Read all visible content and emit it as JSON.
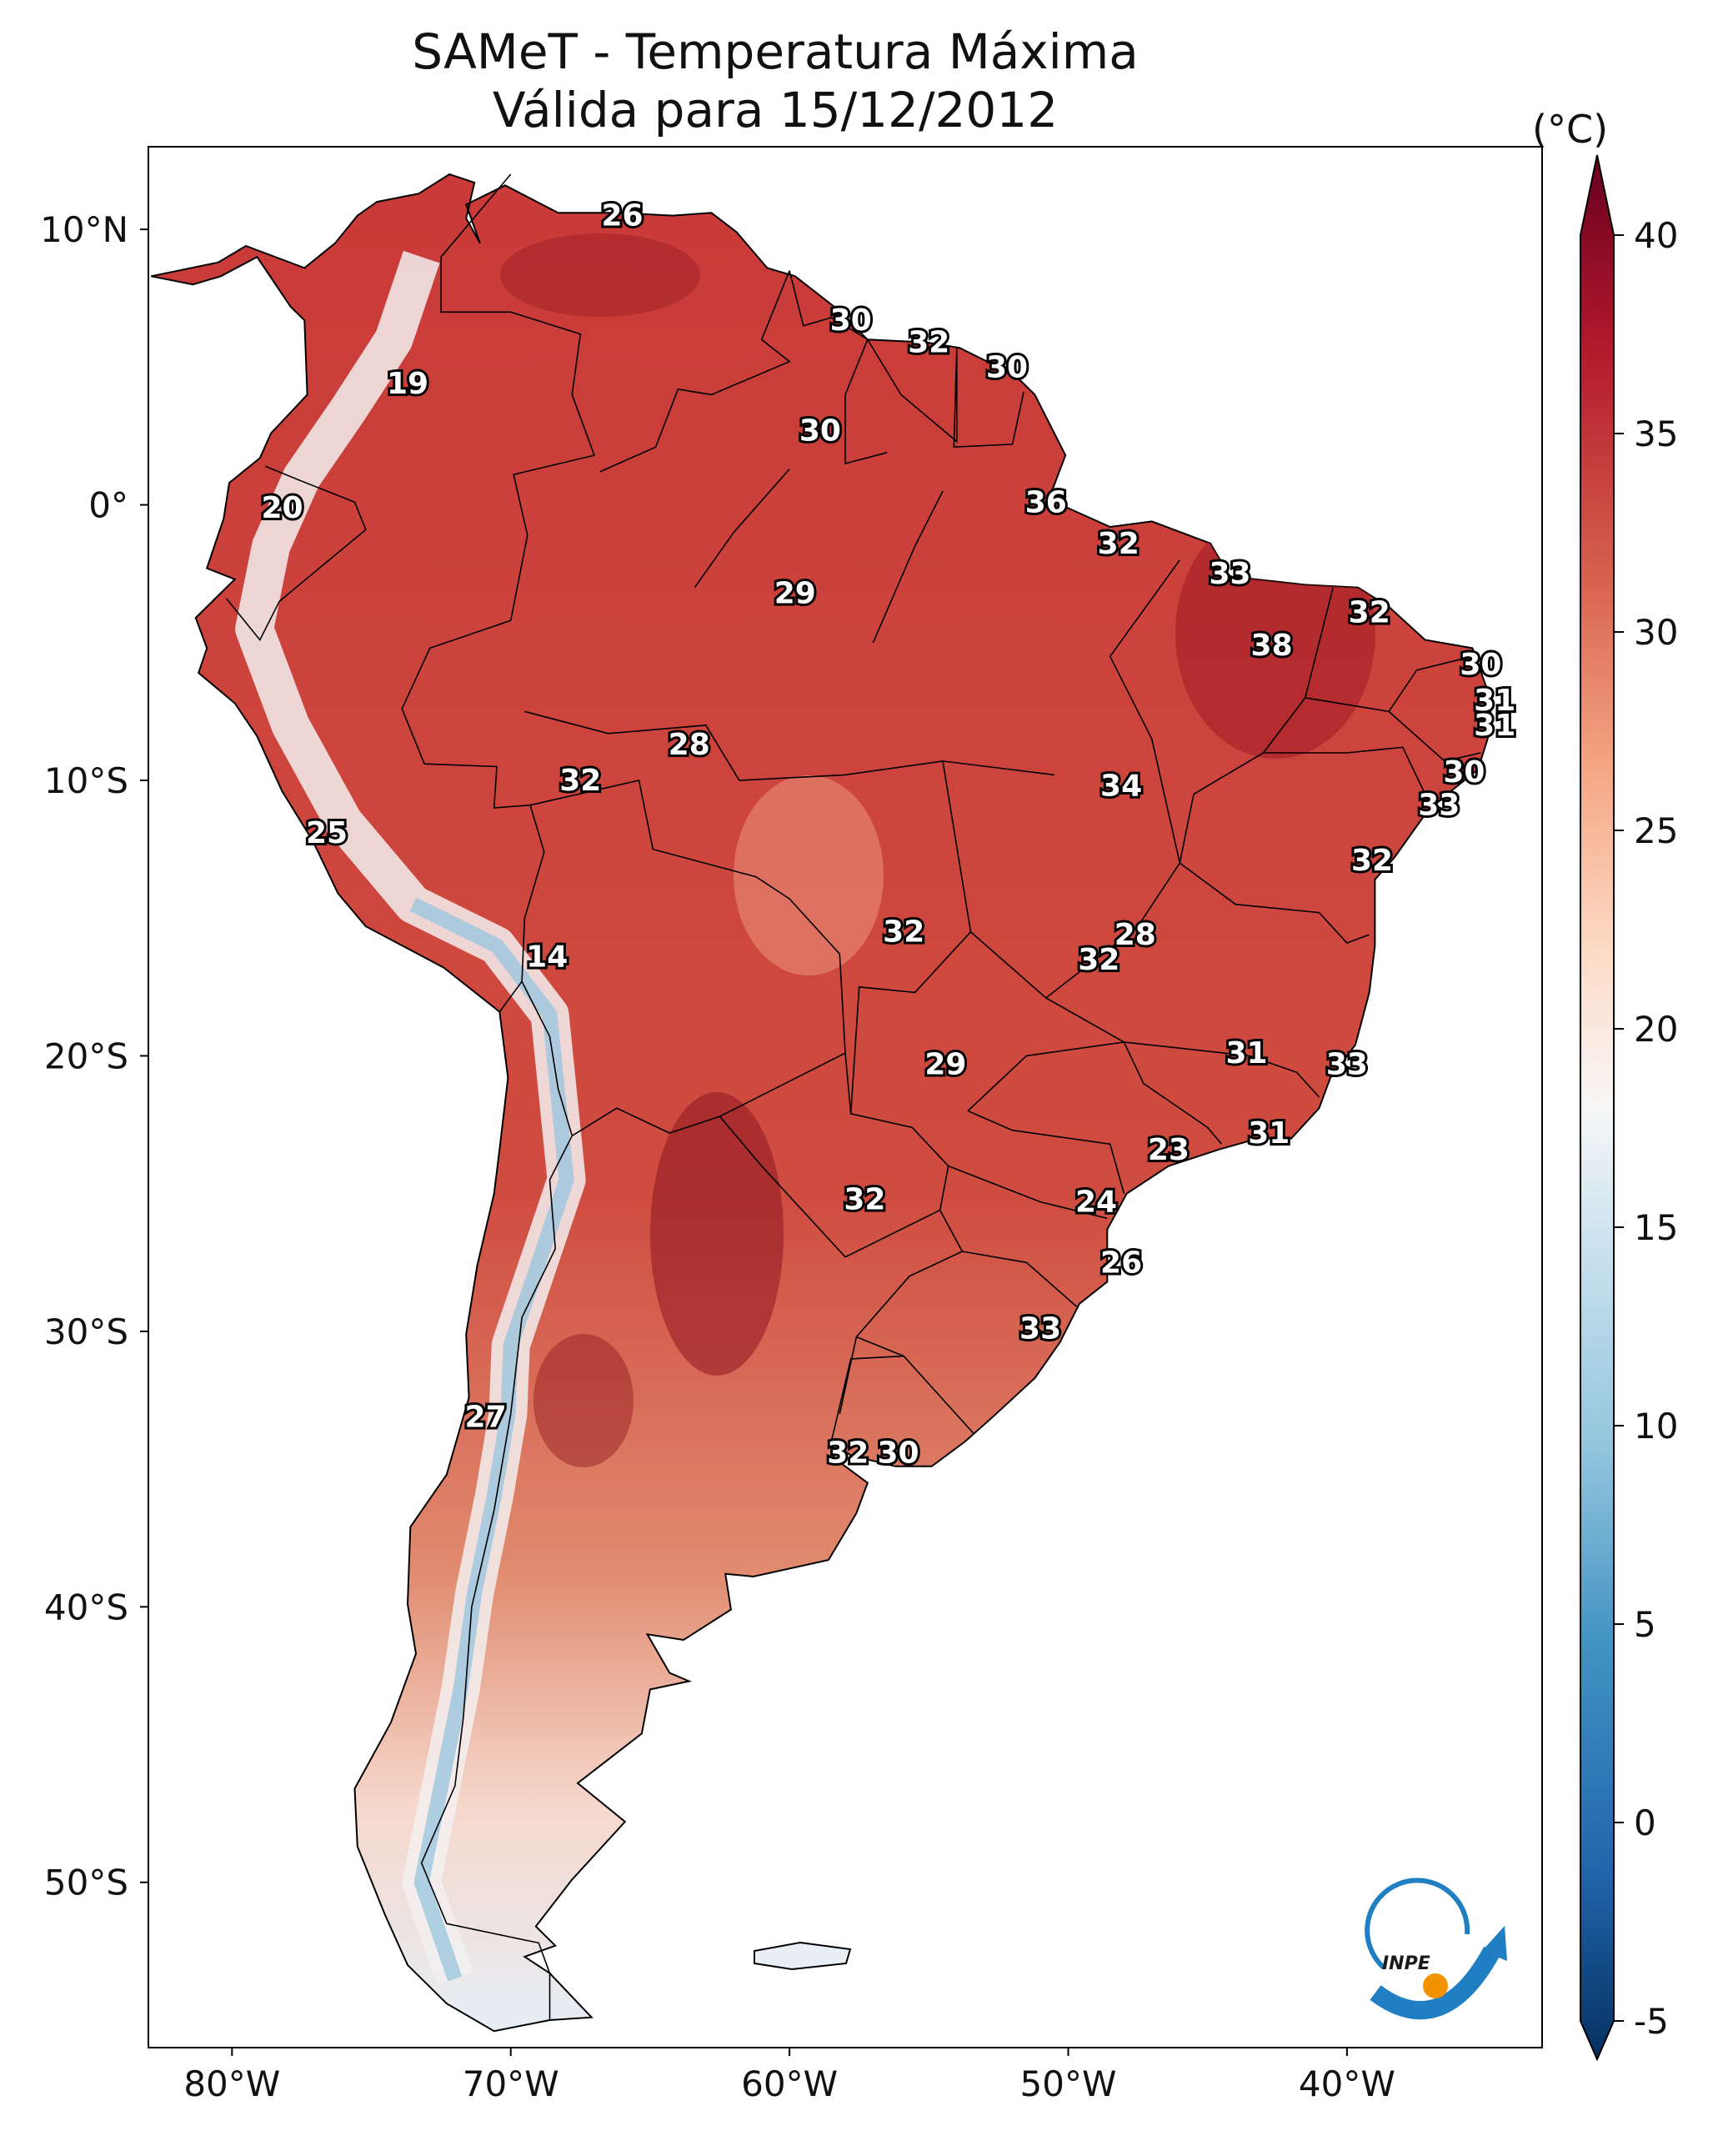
{
  "title": {
    "line1": "SAMeT - Temperatura Máxima",
    "line2": "Válida para 15/12/2012"
  },
  "colorbar": {
    "unit": "(°C)",
    "ticks": [
      "40",
      "35",
      "30",
      "25",
      "20",
      "15",
      "10",
      "5",
      "0",
      "-5"
    ],
    "range": [
      -5,
      40
    ],
    "colormap": "RdBu_r",
    "extend": "both"
  },
  "axes": {
    "lat_ticks": [
      "10°N",
      "0°",
      "10°S",
      "20°S",
      "30°S",
      "40°S",
      "50°S"
    ],
    "lon_ticks": [
      "80°W",
      "70°W",
      "60°W",
      "50°W",
      "40°W"
    ]
  },
  "map": {
    "region": "South America",
    "extent": {
      "lon": [
        -83,
        -33
      ],
      "lat": [
        -56,
        13
      ]
    }
  },
  "labels": [
    {
      "value": "26",
      "lon": -66.0,
      "lat": 10.5
    },
    {
      "value": "19",
      "lon": -73.7,
      "lat": 4.4
    },
    {
      "value": "20",
      "lon": -78.2,
      "lat": -0.1
    },
    {
      "value": "30",
      "lon": -57.8,
      "lat": 6.7
    },
    {
      "value": "32",
      "lon": -55.0,
      "lat": 5.9
    },
    {
      "value": "30",
      "lon": -52.2,
      "lat": 5.0
    },
    {
      "value": "30",
      "lon": -58.9,
      "lat": 2.7
    },
    {
      "value": "36",
      "lon": -50.8,
      "lat": 0.1
    },
    {
      "value": "32",
      "lon": -48.2,
      "lat": -1.4
    },
    {
      "value": "33",
      "lon": -44.2,
      "lat": -2.5
    },
    {
      "value": "29",
      "lon": -59.8,
      "lat": -3.2
    },
    {
      "value": "32",
      "lon": -39.2,
      "lat": -3.9
    },
    {
      "value": "38",
      "lon": -42.7,
      "lat": -5.1
    },
    {
      "value": "30",
      "lon": -35.2,
      "lat": -5.8
    },
    {
      "value": "31",
      "lon": -34.7,
      "lat": -7.1
    },
    {
      "value": "31",
      "lon": -34.7,
      "lat": -8.0
    },
    {
      "value": "30",
      "lon": -35.8,
      "lat": -9.7
    },
    {
      "value": "28",
      "lon": -63.6,
      "lat": -8.7
    },
    {
      "value": "32",
      "lon": -67.5,
      "lat": -10.0
    },
    {
      "value": "34",
      "lon": -48.1,
      "lat": -10.2
    },
    {
      "value": "33",
      "lon": -36.7,
      "lat": -10.9
    },
    {
      "value": "25",
      "lon": -76.6,
      "lat": -11.9
    },
    {
      "value": "32",
      "lon": -39.1,
      "lat": -12.9
    },
    {
      "value": "32",
      "lon": -55.9,
      "lat": -15.5
    },
    {
      "value": "28",
      "lon": -47.6,
      "lat": -15.6
    },
    {
      "value": "32",
      "lon": -48.9,
      "lat": -16.5
    },
    {
      "value": "14",
      "lon": -68.7,
      "lat": -16.4
    },
    {
      "value": "31",
      "lon": -43.6,
      "lat": -19.9
    },
    {
      "value": "29",
      "lon": -54.4,
      "lat": -20.3
    },
    {
      "value": "33",
      "lon": -40.0,
      "lat": -20.3
    },
    {
      "value": "31",
      "lon": -42.8,
      "lat": -22.8
    },
    {
      "value": "23",
      "lon": -46.4,
      "lat": -23.4
    },
    {
      "value": "32",
      "lon": -57.3,
      "lat": -25.2
    },
    {
      "value": "24",
      "lon": -49.0,
      "lat": -25.3
    },
    {
      "value": "26",
      "lon": -48.1,
      "lat": -27.5
    },
    {
      "value": "33",
      "lon": -51.0,
      "lat": -29.9
    },
    {
      "value": "27",
      "lon": -70.9,
      "lat": -33.1
    },
    {
      "value": "32",
      "lon": -57.9,
      "lat": -34.4
    },
    {
      "value": "30",
      "lon": -56.1,
      "lat": -34.4
    }
  ],
  "logo": {
    "text": "INPE"
  }
}
